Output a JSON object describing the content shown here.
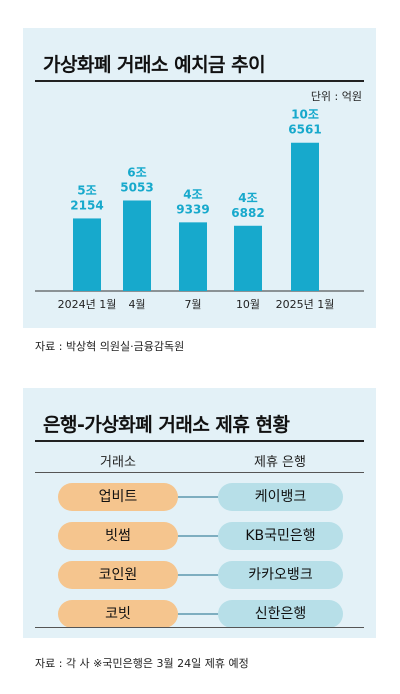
{
  "chart": {
    "title": "가상화폐 거래소 예치금 추이",
    "unit": "단위 : 억원",
    "source": "자료 : 박상혁 의원실·금융감독원"
  },
  "chart_data": {
    "type": "bar",
    "title": "가상화폐 거래소 예치금 추이",
    "unit": "억원",
    "categories": [
      "2024년 1월",
      "4월",
      "7월",
      "10월",
      "2025년 1월"
    ],
    "values": [
      52154,
      65053,
      49339,
      46882,
      106561
    ],
    "labels_top": [
      "5조",
      "6조",
      "4조",
      "4조",
      "10조"
    ],
    "labels_bottom": [
      "2154",
      "5053",
      "9339",
      "6882",
      "6561"
    ],
    "colors": {
      "bar": "#17a9cc",
      "label": "#17a9cc",
      "axis": "#333333"
    },
    "ylim": [
      0,
      115000
    ],
    "grid": false
  },
  "partner": {
    "title": "은행-가상화폐 거래소 제휴 현황",
    "col_exchange": "거래소",
    "col_bank": "제휴 은행",
    "rows": [
      {
        "exchange": "업비트",
        "bank": "케이뱅크"
      },
      {
        "exchange": "빗썸",
        "bank": "KB국민은행"
      },
      {
        "exchange": "코인원",
        "bank": "카카오뱅크"
      },
      {
        "exchange": "코빗",
        "bank": "신한은행"
      }
    ],
    "source": "자료 : 각 사 ※국민은행은 3월 24일 제휴 예정",
    "colors": {
      "exchange": "#f5c58e",
      "bank": "#b7dfe8",
      "connector": "#1a6b8a"
    }
  }
}
